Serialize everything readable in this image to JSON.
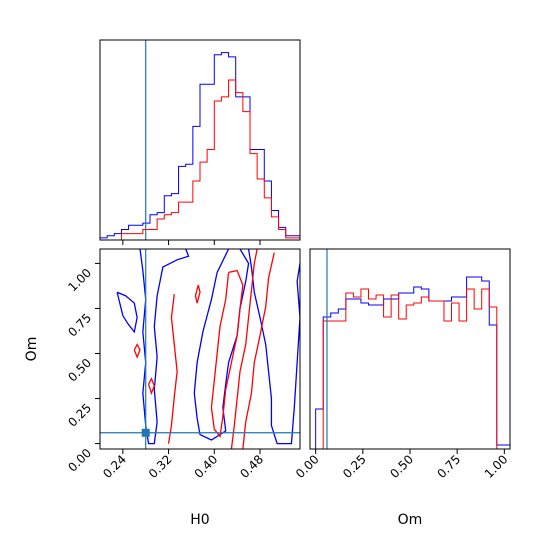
{
  "chart_data": {
    "type": "corner",
    "truth": {
      "H0": 0.28,
      "Om": 0.06
    },
    "colors": {
      "series_a": "#0000ff",
      "series_b": "#ff0000",
      "truth": "#1f77b4"
    },
    "panels": {
      "H0_hist": {
        "xlim": [
          0.2,
          0.55
        ],
        "xticks": [
          0.24,
          0.32,
          0.4,
          0.48
        ],
        "bin_edges": [
          0.2,
          0.2125,
          0.225,
          0.2375,
          0.25,
          0.2625,
          0.275,
          0.2875,
          0.3,
          0.3125,
          0.325,
          0.3375,
          0.35,
          0.3625,
          0.375,
          0.3875,
          0.4,
          0.4125,
          0.425,
          0.4375,
          0.45,
          0.4625,
          0.475,
          0.4875,
          0.5,
          0.5125,
          0.525,
          0.5375,
          0.55
        ],
        "series_a_counts": [
          1,
          2,
          3,
          5,
          7,
          7,
          8,
          12,
          13,
          21,
          22,
          35,
          36,
          54,
          74,
          74,
          88,
          89,
          87,
          68,
          68,
          43,
          43,
          28,
          14,
          6,
          2,
          2
        ],
        "series_b_counts": [
          0,
          0,
          0,
          3,
          3,
          3,
          5,
          5,
          10,
          12,
          13,
          18,
          18,
          28,
          37,
          43,
          66,
          68,
          76,
          70,
          61,
          41,
          29,
          20,
          11,
          5,
          1,
          1
        ]
      },
      "Om_hist": {
        "xlim": [
          -0.03,
          1.03
        ],
        "xticks": [
          "0.00",
          "0.25",
          "0.50",
          "0.75",
          "1.00"
        ],
        "bin_edges": [
          0.0,
          0.04,
          0.08,
          0.12,
          0.16,
          0.2,
          0.24,
          0.28,
          0.32,
          0.36,
          0.4,
          0.44,
          0.48,
          0.52,
          0.56,
          0.6,
          0.64,
          0.68,
          0.72,
          0.76,
          0.8,
          0.84,
          0.88,
          0.92,
          0.96,
          1.0,
          1.03
        ],
        "series_a_counts": [
          20,
          66,
          68,
          70,
          75,
          75,
          73,
          72,
          72,
          75,
          75,
          78,
          78,
          81,
          80,
          74,
          74,
          74,
          76,
          76,
          86,
          86,
          84,
          62,
          2,
          2
        ],
        "series_b_counts": [
          0,
          64,
          64,
          64,
          78,
          76,
          80,
          75,
          77,
          66,
          77,
          65,
          72,
          73,
          76,
          74,
          74,
          64,
          73,
          64,
          80,
          70,
          80,
          71,
          0,
          0
        ]
      },
      "joint": {
        "xlabel": "H0",
        "ylabel": "Om",
        "xlim": [
          0.2,
          0.55
        ],
        "ylim": [
          -0.03,
          1.08
        ],
        "xticks": [
          "0.24",
          "0.32",
          "0.40",
          "0.48"
        ],
        "yticks": [
          "0.00",
          "0.25",
          "0.50",
          "0.75",
          "1.00"
        ],
        "series_a_contours": [
          [
            [
              0.27,
              1.08
            ],
            [
              0.275,
              0.96
            ],
            [
              0.28,
              0.8
            ],
            [
              0.275,
              0.62
            ],
            [
              0.28,
              0.45
            ],
            [
              0.275,
              0.28
            ],
            [
              0.28,
              0.1
            ],
            [
              0.285,
              0.0
            ],
            [
              0.295,
              0.0
            ],
            [
              0.3,
              0.12
            ],
            [
              0.295,
              0.3
            ],
            [
              0.3,
              0.48
            ],
            [
              0.295,
              0.65
            ],
            [
              0.3,
              0.82
            ],
            [
              0.31,
              0.98
            ],
            [
              0.335,
              1.02
            ],
            [
              0.355,
              1.04
            ],
            [
              0.35,
              1.08
            ]
          ],
          [
            [
              0.425,
              1.08
            ],
            [
              0.405,
              0.95
            ],
            [
              0.395,
              0.8
            ],
            [
              0.38,
              0.62
            ],
            [
              0.37,
              0.45
            ],
            [
              0.365,
              0.28
            ],
            [
              0.37,
              0.14
            ],
            [
              0.375,
              0.05
            ],
            [
              0.395,
              0.02
            ],
            [
              0.42,
              0.07
            ],
            [
              0.415,
              0.2
            ],
            [
              0.42,
              0.33
            ],
            [
              0.425,
              0.45
            ],
            [
              0.44,
              0.6
            ],
            [
              0.445,
              0.75
            ],
            [
              0.455,
              0.9
            ],
            [
              0.46,
              1.0
            ],
            [
              0.445,
              1.08
            ]
          ],
          [
            [
              0.46,
              1.08
            ],
            [
              0.465,
              0.98
            ],
            [
              0.47,
              0.84
            ],
            [
              0.48,
              0.7
            ],
            [
              0.49,
              0.55
            ],
            [
              0.495,
              0.4
            ],
            [
              0.5,
              0.25
            ],
            [
              0.5,
              0.1
            ],
            [
              0.51,
              0.0
            ],
            [
              0.535,
              0.0
            ],
            [
              0.54,
              0.2
            ],
            [
              0.545,
              0.45
            ],
            [
              0.55,
              0.7
            ],
            [
              0.545,
              0.9
            ],
            [
              0.55,
              1.0
            ]
          ],
          [
            [
              0.23,
              0.84
            ],
            [
              0.24,
              0.71
            ],
            [
              0.25,
              0.66
            ],
            [
              0.26,
              0.62
            ],
            [
              0.265,
              0.7
            ],
            [
              0.26,
              0.78
            ],
            [
              0.245,
              0.82
            ],
            [
              0.23,
              0.84
            ]
          ]
        ],
        "series_b_contours": [
          [
            [
              0.33,
              0.83
            ],
            [
              0.325,
              0.7
            ],
            [
              0.33,
              0.55
            ],
            [
              0.335,
              0.4
            ],
            [
              0.33,
              0.26
            ],
            [
              0.325,
              0.1
            ],
            [
              0.32,
              0.0
            ]
          ],
          [
            [
              0.425,
              0.95
            ],
            [
              0.42,
              0.8
            ],
            [
              0.41,
              0.65
            ],
            [
              0.405,
              0.5
            ],
            [
              0.4,
              0.35
            ],
            [
              0.395,
              0.2
            ],
            [
              0.4,
              0.08
            ],
            [
              0.41,
              0.04
            ],
            [
              0.415,
              0.15
            ],
            [
              0.42,
              0.3
            ],
            [
              0.43,
              0.45
            ],
            [
              0.44,
              0.6
            ],
            [
              0.445,
              0.75
            ],
            [
              0.45,
              0.88
            ],
            [
              0.44,
              0.96
            ],
            [
              0.425,
              0.95
            ]
          ],
          [
            [
              0.43,
              -0.03
            ],
            [
              0.435,
              0.1
            ],
            [
              0.44,
              0.25
            ],
            [
              0.445,
              0.4
            ],
            [
              0.455,
              0.55
            ],
            [
              0.46,
              0.7
            ],
            [
              0.465,
              0.85
            ],
            [
              0.47,
              1.0
            ],
            [
              0.475,
              1.08
            ]
          ],
          [
            [
              0.45,
              -0.03
            ],
            [
              0.455,
              0.12
            ],
            [
              0.465,
              0.28
            ],
            [
              0.47,
              0.45
            ],
            [
              0.48,
              0.6
            ],
            [
              0.49,
              0.76
            ],
            [
              0.495,
              0.92
            ],
            [
              0.505,
              1.06
            ]
          ],
          [
            [
              0.37,
              0.78
            ],
            [
              0.375,
              0.84
            ],
            [
              0.372,
              0.88
            ],
            [
              0.367,
              0.82
            ],
            [
              0.37,
              0.78
            ]
          ],
          [
            [
              0.26,
              0.52
            ],
            [
              0.265,
              0.48
            ],
            [
              0.27,
              0.52
            ],
            [
              0.265,
              0.55
            ],
            [
              0.26,
              0.52
            ]
          ],
          [
            [
              0.285,
              0.33
            ],
            [
              0.29,
              0.28
            ],
            [
              0.295,
              0.32
            ],
            [
              0.29,
              0.36
            ],
            [
              0.285,
              0.33
            ]
          ]
        ]
      }
    }
  }
}
